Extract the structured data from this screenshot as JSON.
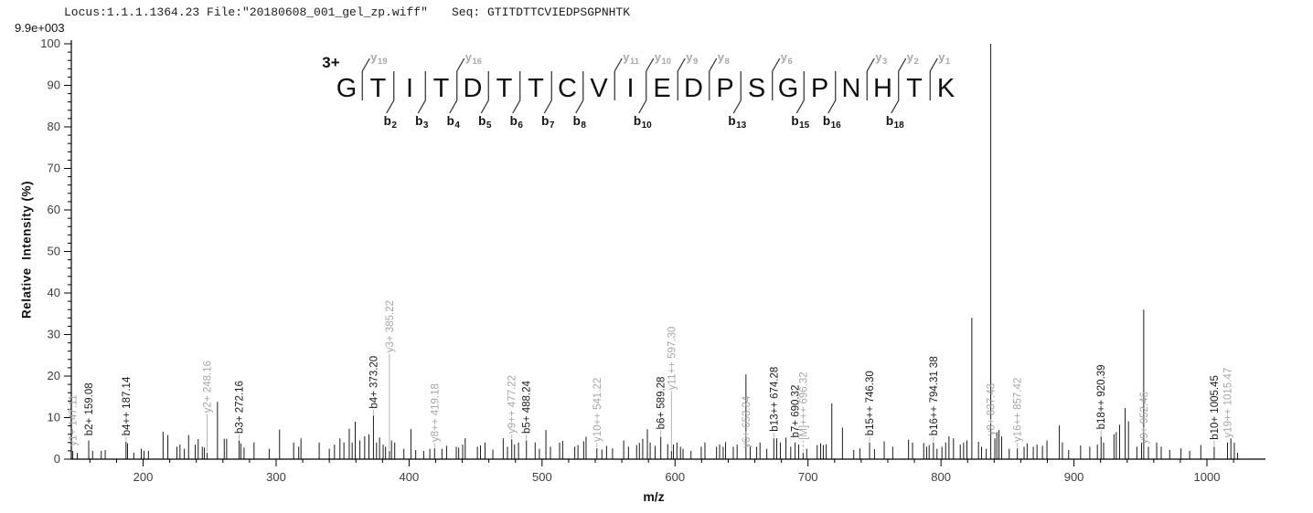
{
  "header": {
    "locus_line": "Locus:1.1.1.1364.23 File:\"20180608_001_gel_zp.wiff\"",
    "seq_line": "Seq: GTITDTTCVIEDPSGPNHTK",
    "intensity_scale": "9.9e+003"
  },
  "sequence_panel": {
    "charge_label": "3+",
    "residues": [
      "G",
      "T",
      "I",
      "T",
      "D",
      "T",
      "T",
      "C",
      "V",
      "I",
      "E",
      "D",
      "P",
      "S",
      "G",
      "P",
      "N",
      "H",
      "T",
      "K"
    ],
    "y_ions": [
      {
        "n": 19,
        "boundary": 1
      },
      {
        "n": 16,
        "boundary": 4
      },
      {
        "n": 11,
        "boundary": 9
      },
      {
        "n": 10,
        "boundary": 10
      },
      {
        "n": 9,
        "boundary": 11
      },
      {
        "n": 8,
        "boundary": 12
      },
      {
        "n": 6,
        "boundary": 14
      },
      {
        "n": 3,
        "boundary": 17
      },
      {
        "n": 2,
        "boundary": 18
      },
      {
        "n": 1,
        "boundary": 19
      }
    ],
    "b_ions": [
      {
        "n": 2,
        "boundary": 2
      },
      {
        "n": 3,
        "boundary": 3
      },
      {
        "n": 4,
        "boundary": 4
      },
      {
        "n": 5,
        "boundary": 5
      },
      {
        "n": 6,
        "boundary": 6
      },
      {
        "n": 7,
        "boundary": 7
      },
      {
        "n": 8,
        "boundary": 8
      },
      {
        "n": 10,
        "boundary": 10
      },
      {
        "n": 13,
        "boundary": 13
      },
      {
        "n": 15,
        "boundary": 15
      },
      {
        "n": 16,
        "boundary": 16
      },
      {
        "n": 18,
        "boundary": 18
      }
    ]
  },
  "chart_data": {
    "type": "bar",
    "title": "",
    "xlabel": "m/z",
    "ylabel": "Relative  Intensity (%)",
    "xlim": [
      146,
      1044
    ],
    "ylim": [
      0,
      100
    ],
    "grid": false,
    "x_tick_labels": [
      200,
      300,
      400,
      500,
      600,
      700,
      800,
      900,
      1000
    ],
    "x_tick_step_minor": 20,
    "y_tick_labels": [
      0,
      10,
      20,
      30,
      40,
      50,
      60,
      70,
      80,
      90,
      100
    ],
    "y_tick_step_minor": 2,
    "peaks": [
      [
        147.11,
        2
      ],
      [
        150.5,
        1.5
      ],
      [
        159.08,
        4.5
      ],
      [
        162,
        2
      ],
      [
        168.5,
        2
      ],
      [
        171.5,
        2.2
      ],
      [
        187.14,
        4.2
      ],
      [
        188.3,
        3.8
      ],
      [
        193,
        1.6
      ],
      [
        198.6,
        2.5
      ],
      [
        200.7,
        2
      ],
      [
        204,
        2
      ],
      [
        215,
        6.6
      ],
      [
        218.6,
        5.8
      ],
      [
        225.4,
        3
      ],
      [
        227.7,
        3.5
      ],
      [
        231,
        2.5
      ],
      [
        234.2,
        5.8
      ],
      [
        239.2,
        3.5
      ],
      [
        241.4,
        4.8
      ],
      [
        244.5,
        3
      ],
      [
        246,
        2.8
      ],
      [
        248.16,
        1.5
      ],
      [
        255.9,
        13.8
      ],
      [
        261,
        4.9
      ],
      [
        262.8,
        4.9
      ],
      [
        272.16,
        4.5
      ],
      [
        273.5,
        3.8
      ],
      [
        275.9,
        2.8
      ],
      [
        283.4,
        4
      ],
      [
        294.8,
        2.5
      ],
      [
        302.6,
        7.1
      ],
      [
        313.2,
        4
      ],
      [
        317,
        3
      ],
      [
        318.7,
        5
      ],
      [
        332.4,
        4
      ],
      [
        340,
        2.5
      ],
      [
        343.9,
        3.5
      ],
      [
        348,
        5
      ],
      [
        351,
        4
      ],
      [
        355,
        7.3
      ],
      [
        357.2,
        4
      ],
      [
        359.5,
        9
      ],
      [
        363,
        4.5
      ],
      [
        366.6,
        5.5
      ],
      [
        369.8,
        6
      ],
      [
        373.2,
        10.5
      ],
      [
        375.5,
        4
      ],
      [
        377.8,
        5.2
      ],
      [
        380.5,
        3.5
      ],
      [
        382.3,
        3
      ],
      [
        385.22,
        2
      ],
      [
        386.8,
        4.5
      ],
      [
        389.2,
        4
      ],
      [
        396.1,
        2.5
      ],
      [
        401.4,
        7.2
      ],
      [
        405,
        2.2
      ],
      [
        411,
        2
      ],
      [
        415.6,
        2.5
      ],
      [
        419.18,
        2.6
      ],
      [
        424.7,
        2.5
      ],
      [
        428.2,
        3.2
      ],
      [
        435.5,
        3
      ],
      [
        437.3,
        2.8
      ],
      [
        440.3,
        3.5
      ],
      [
        442.2,
        5
      ],
      [
        451.4,
        3
      ],
      [
        453.7,
        3.3
      ],
      [
        457.1,
        4
      ],
      [
        463,
        2.3
      ],
      [
        470.8,
        5
      ],
      [
        474,
        3
      ],
      [
        477.22,
        4.8
      ],
      [
        479.3,
        3.5
      ],
      [
        482.3,
        4
      ],
      [
        488.24,
        4.5
      ],
      [
        494.8,
        4
      ],
      [
        498,
        2.5
      ],
      [
        502.9,
        7
      ],
      [
        506.3,
        3
      ],
      [
        513.2,
        4
      ],
      [
        515.5,
        4.4
      ],
      [
        524.6,
        3
      ],
      [
        527,
        3.4
      ],
      [
        531.3,
        4.3
      ],
      [
        533.1,
        5.4
      ],
      [
        541.22,
        2.6
      ],
      [
        545,
        2.3
      ],
      [
        548.5,
        3.2
      ],
      [
        553,
        2.6
      ],
      [
        561.4,
        4.5
      ],
      [
        565,
        3
      ],
      [
        571.1,
        3.4
      ],
      [
        573.2,
        3.9
      ],
      [
        575.7,
        4.9
      ],
      [
        579.2,
        7.2
      ],
      [
        581.3,
        4
      ],
      [
        585,
        3.2
      ],
      [
        589.28,
        5.4
      ],
      [
        594.5,
        3.6
      ],
      [
        597.3,
        2
      ],
      [
        598.8,
        3.5
      ],
      [
        601.4,
        4
      ],
      [
        604.1,
        3
      ],
      [
        606,
        2.5
      ],
      [
        612,
        2
      ],
      [
        619.7,
        3
      ],
      [
        622.5,
        4
      ],
      [
        631.2,
        3
      ],
      [
        633.5,
        3.5
      ],
      [
        636.2,
        3
      ],
      [
        638,
        4.1
      ],
      [
        643.8,
        3
      ],
      [
        646.7,
        3.5
      ],
      [
        653.34,
        20.4
      ],
      [
        656.5,
        3
      ],
      [
        661.4,
        3
      ],
      [
        663.9,
        4
      ],
      [
        669,
        2.5
      ],
      [
        674.28,
        5
      ],
      [
        676.5,
        5
      ],
      [
        679.2,
        4
      ],
      [
        683.4,
        5.2
      ],
      [
        687,
        3
      ],
      [
        690.32,
        4
      ],
      [
        693,
        3.5
      ],
      [
        696.32,
        1.5
      ],
      [
        699,
        2.5
      ],
      [
        706.9,
        3.4
      ],
      [
        709.5,
        3.8
      ],
      [
        711.5,
        3.4
      ],
      [
        713.7,
        3.6
      ],
      [
        717.9,
        13.4
      ],
      [
        725.9,
        7.6
      ],
      [
        734.4,
        2.2
      ],
      [
        739,
        2.6
      ],
      [
        746.3,
        4
      ],
      [
        750,
        2.4
      ],
      [
        757.3,
        4.3
      ],
      [
        763.7,
        3
      ],
      [
        775.6,
        4.7
      ],
      [
        778.6,
        4
      ],
      [
        787,
        3.9
      ],
      [
        789.2,
        3
      ],
      [
        791.1,
        3.4
      ],
      [
        794.31,
        4
      ],
      [
        797,
        2.5
      ],
      [
        800.7,
        3
      ],
      [
        803.5,
        4
      ],
      [
        806,
        5.5
      ],
      [
        809.4,
        5
      ],
      [
        814.5,
        3.5
      ],
      [
        817,
        4
      ],
      [
        819.5,
        4.5
      ],
      [
        823.2,
        34
      ],
      [
        828.2,
        4.2
      ],
      [
        830.5,
        3
      ],
      [
        834,
        2.5
      ],
      [
        837.43,
        100
      ],
      [
        840.5,
        5
      ],
      [
        842,
        6.5
      ],
      [
        843.6,
        7
      ],
      [
        845.6,
        5.5
      ],
      [
        851.3,
        2.5
      ],
      [
        857.42,
        2.6
      ],
      [
        862.5,
        3
      ],
      [
        864.8,
        3.8
      ],
      [
        869.4,
        3
      ],
      [
        872.2,
        3.5
      ],
      [
        876.3,
        3.2
      ],
      [
        879.7,
        4.5
      ],
      [
        889,
        8.1
      ],
      [
        891.3,
        4
      ],
      [
        896,
        2.2
      ],
      [
        905,
        3.3
      ],
      [
        911.9,
        3
      ],
      [
        917.6,
        3.5
      ],
      [
        920.39,
        5.5
      ],
      [
        922.3,
        4
      ],
      [
        930.1,
        6
      ],
      [
        931.8,
        6.5
      ],
      [
        934.3,
        8.3
      ],
      [
        938.5,
        12.3
      ],
      [
        941,
        9.1
      ],
      [
        947.3,
        3
      ],
      [
        950.8,
        4
      ],
      [
        952.46,
        36
      ],
      [
        956,
        3
      ],
      [
        962.2,
        4
      ],
      [
        965.6,
        3
      ],
      [
        972,
        2.2
      ],
      [
        980.5,
        2.6
      ],
      [
        987,
        2
      ],
      [
        995.4,
        3.4
      ],
      [
        1005.45,
        3
      ],
      [
        1015.47,
        4
      ],
      [
        1018,
        5
      ],
      [
        1020.6,
        4
      ],
      [
        1023,
        1.5
      ]
    ],
    "peak_labels": [
      {
        "mz": 147.11,
        "text": "y1+ 147.11",
        "color": "gray",
        "base_pct": 2.5
      },
      {
        "mz": 159.08,
        "text": "b2+ 159.08",
        "color": "black",
        "base_pct": 5
      },
      {
        "mz": 187.14,
        "text": "b4++ 187.14",
        "color": "black",
        "base_pct": 5
      },
      {
        "mz": 248.16,
        "text": "y2+ 248.16",
        "color": "gray",
        "base_pct": 10.5,
        "leader": "solid"
      },
      {
        "mz": 272.16,
        "text": "b3+ 272.16",
        "color": "black",
        "base_pct": 5.5
      },
      {
        "mz": 373.2,
        "text": "b4+ 373.20",
        "color": "black",
        "base_pct": 11.5
      },
      {
        "mz": 385.22,
        "text": "y3+ 385.22",
        "color": "gray",
        "base_pct": 25,
        "leader": "solid"
      },
      {
        "mz": 419.18,
        "text": "y8++ 419.18",
        "color": "gray",
        "base_pct": 3.5
      },
      {
        "mz": 477.22,
        "text": "y9++ 477.22",
        "color": "gray",
        "base_pct": 5.5
      },
      {
        "mz": 488.24,
        "text": "b5+ 488.24",
        "color": "black",
        "base_pct": 5.5
      },
      {
        "mz": 541.22,
        "text": "y10++ 541.22",
        "color": "gray",
        "base_pct": 3.5
      },
      {
        "mz": 589.28,
        "text": "b6+ 589.28",
        "color": "black",
        "base_pct": 6.5
      },
      {
        "mz": 597.3,
        "text": "y11++ 597.30",
        "color": "gray",
        "base_pct": 16,
        "leader": "solid"
      },
      {
        "mz": 653.34,
        "text": "y6+ 653.34",
        "color": "gray",
        "base_pct": 2
      },
      {
        "mz": 674.28,
        "text": "b13++ 674.28",
        "color": "black",
        "base_pct": 6
      },
      {
        "mz": 690.32,
        "text": "b7+ 690.32",
        "color": "black",
        "base_pct": 4.5
      },
      {
        "mz": 696.32,
        "text": "[M]+++ 696.32",
        "color": "gray",
        "base_pct": 4,
        "leader": "dashed"
      },
      {
        "mz": 746.3,
        "text": "b15++ 746.30",
        "color": "black",
        "base_pct": 5
      },
      {
        "mz": 794.31,
        "text": "b16++ 794.31 38",
        "color": "black",
        "base_pct": 5
      },
      {
        "mz": 837.43,
        "text": "y8+ 837.43",
        "color": "gray",
        "base_pct": 5
      },
      {
        "mz": 857.42,
        "text": "y16++ 857.42",
        "color": "gray",
        "base_pct": 3.5
      },
      {
        "mz": 920.39,
        "text": "b18++ 920.39",
        "color": "black",
        "base_pct": 6.5
      },
      {
        "mz": 952.46,
        "text": "y9+ 952.46",
        "color": "gray",
        "base_pct": 3
      },
      {
        "mz": 1005.45,
        "text": "b10+ 1005.45",
        "color": "black",
        "base_pct": 4
      },
      {
        "mz": 1015.47,
        "text": "y19++ 1015.47",
        "color": "gray",
        "base_pct": 4.5
      }
    ]
  },
  "colors": {
    "peak": "#1a1a1a",
    "axis": "#000000",
    "tick_text": "#3d3d3d",
    "gray_label": "#a6a6a6",
    "black_label": "#1a1a1a",
    "leader": "#b5b5b5",
    "seq_letter": "#111111",
    "seq_line": "#2a2a2a",
    "y_ion_label": "#a8a8a8",
    "b_ion_label": "#111111"
  }
}
